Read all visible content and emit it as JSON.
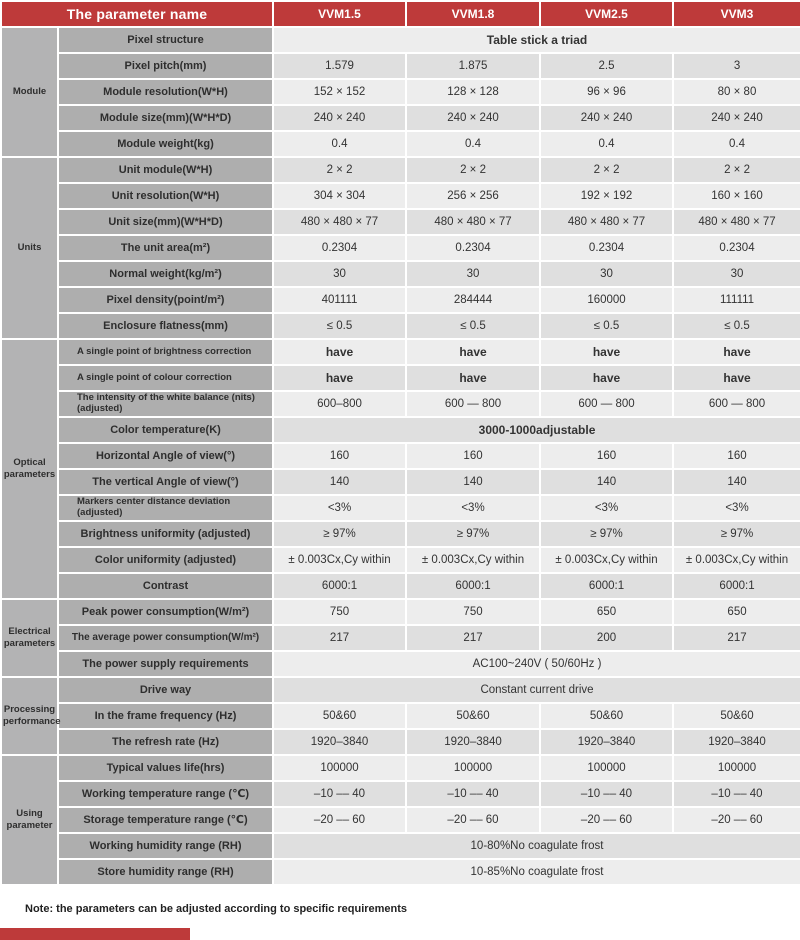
{
  "colors": {
    "header_red": "#be3a3a",
    "section_grey": "#b3b3b4",
    "label_grey": "#aeaeae",
    "row_light": "#ededed",
    "row_dark": "#dfdfdf"
  },
  "table": {
    "header": {
      "param_col_label": "The parameter name",
      "columns": [
        "VVM1.5",
        "VVM1.8",
        "VVM2.5",
        "VVM3"
      ]
    },
    "sections": [
      {
        "label": "Module",
        "span": 5
      },
      {
        "label": "Units",
        "span": 7
      },
      {
        "label": "Optical parameters",
        "span": 10
      },
      {
        "label": "Electrical parameters",
        "span": 3
      },
      {
        "label": "Processing performance",
        "span": 3
      },
      {
        "label": "Using parameter",
        "span": 5
      }
    ],
    "rows": [
      {
        "label": "Pixel structure",
        "merged": "Table stick a triad",
        "mergedBold": true
      },
      {
        "label": "Pixel pitch(mm)",
        "values": [
          "1.579",
          "1.875",
          "2.5",
          "3"
        ]
      },
      {
        "label": "Module resolution(W*H)",
        "values": [
          "152 × 152",
          "128 × 128",
          "96 × 96",
          "80 × 80"
        ]
      },
      {
        "label": "Module size(mm)(W*H*D)",
        "values": [
          "240 × 240",
          "240 × 240",
          "240 × 240",
          "240 × 240"
        ]
      },
      {
        "label": "Module weight(kg)",
        "values": [
          "0.4",
          "0.4",
          "0.4",
          "0.4"
        ]
      },
      {
        "label": "Unit module(W*H)",
        "values": [
          "2 × 2",
          "2 × 2",
          "2 × 2",
          "2 × 2"
        ]
      },
      {
        "label": "Unit resolution(W*H)",
        "values": [
          "304 × 304",
          "256 × 256",
          "192 × 192",
          "160 × 160"
        ]
      },
      {
        "label": "Unit size(mm)(W*H*D)",
        "values": [
          "480 × 480 × 77",
          "480 × 480 × 77",
          "480 × 480 × 77",
          "480 × 480 × 77"
        ]
      },
      {
        "label": "The unit area(m²)",
        "values": [
          "0.2304",
          "0.2304",
          "0.2304",
          "0.2304"
        ]
      },
      {
        "label": "Normal weight(kg/m²)",
        "values": [
          "30",
          "30",
          "30",
          "30"
        ]
      },
      {
        "label": "Pixel density(point/m²)",
        "values": [
          "401111",
          "284444",
          "160000",
          "111111"
        ]
      },
      {
        "label": "Enclosure flatness(mm)",
        "values": [
          "≤ 0.5",
          "≤ 0.5",
          "≤ 0.5",
          "≤ 0.5"
        ]
      },
      {
        "label": "A single point of brightness correction",
        "small": true,
        "boldValues": true,
        "values": [
          "have",
          "have",
          "have",
          "have"
        ]
      },
      {
        "label": "A single point of colour correction",
        "small": true,
        "boldValues": true,
        "values": [
          "have",
          "have",
          "have",
          "have"
        ]
      },
      {
        "label": "The intensity of the white balance (nits) (adjusted)",
        "small": true,
        "values": [
          "600–800",
          "600 — 800",
          "600 — 800",
          "600 — 800"
        ]
      },
      {
        "label": "Color temperature(K)",
        "merged": "3000-1000adjustable",
        "mergedBold": true
      },
      {
        "label": "Horizontal Angle of view(°)",
        "values": [
          "160",
          "160",
          "160",
          "160"
        ]
      },
      {
        "label": "The vertical Angle of view(°)",
        "values": [
          "140",
          "140",
          "140",
          "140"
        ]
      },
      {
        "label": "Markers center distance deviation (adjusted)",
        "small": true,
        "values": [
          "<3%",
          "<3%",
          "<3%",
          "<3%"
        ]
      },
      {
        "label": "Brightness uniformity (adjusted)",
        "values": [
          "≥ 97%",
          "≥ 97%",
          "≥ 97%",
          "≥ 97%"
        ]
      },
      {
        "label": "Color uniformity (adjusted)",
        "values": [
          "± 0.003Cx,Cy within",
          "± 0.003Cx,Cy within",
          "± 0.003Cx,Cy within",
          "± 0.003Cx,Cy within"
        ]
      },
      {
        "label": "Contrast",
        "values": [
          "6000:1",
          "6000:1",
          "6000:1",
          "6000:1"
        ]
      },
      {
        "label": "Peak power consumption(W/m²)",
        "values": [
          "750",
          "750",
          "650",
          "650"
        ]
      },
      {
        "label": "The average power consumption(W/m²)",
        "condensed": true,
        "values": [
          "217",
          "217",
          "200",
          "217"
        ]
      },
      {
        "label": "The power supply requirements",
        "merged": "AC100~240V ( 50/60Hz )"
      },
      {
        "label": "Drive way",
        "merged": "Constant current drive"
      },
      {
        "label": "In the frame frequency (Hz)",
        "values": [
          "50&60",
          "50&60",
          "50&60",
          "50&60"
        ]
      },
      {
        "label": "The refresh rate (Hz)",
        "values": [
          "1920–3840",
          "1920–3840",
          "1920–3840",
          "1920–3840"
        ]
      },
      {
        "label": "Typical values life(hrs)",
        "values": [
          "100000",
          "100000",
          "100000",
          "100000"
        ]
      },
      {
        "label": "Working temperature range (℃)",
        "values": [
          "–10 –– 40",
          "–10 –– 40",
          "–10 –– 40",
          "–10 –– 40"
        ]
      },
      {
        "label": "Storage temperature range (℃)",
        "values": [
          "–20 –– 60",
          "–20 –– 60",
          "–20 –– 60",
          "–20 –– 60"
        ]
      },
      {
        "label": "Working humidity range (RH)",
        "merged": "10-80%No coagulate frost"
      },
      {
        "label": "Store humidity range (RH)",
        "merged": "10-85%No coagulate frost"
      }
    ]
  },
  "note": "Note: the parameters can be adjusted according to specific requirements"
}
